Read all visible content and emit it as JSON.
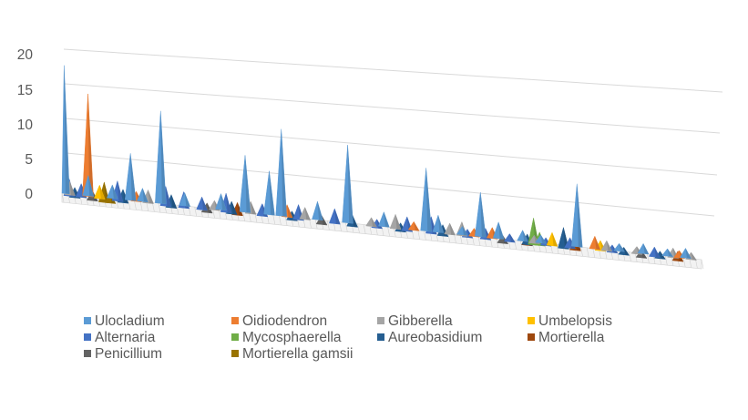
{
  "chart_data": {
    "type": "area",
    "title": "",
    "xlabel": "",
    "ylabel": "",
    "ylim": [
      0,
      20
    ],
    "yticks": [
      "20",
      "15",
      "10",
      "5",
      "0"
    ],
    "grid": true,
    "legend_position": "bottom",
    "series": [
      {
        "name": "Ulocladium",
        "color": "#5B9BD5",
        "peaks": [
          [
            0,
            18.5
          ],
          [
            4,
            3
          ],
          [
            8,
            2
          ],
          [
            11,
            7
          ],
          [
            13,
            2
          ],
          [
            16,
            14
          ],
          [
            20,
            2
          ],
          [
            26,
            2.5
          ],
          [
            30,
            9
          ],
          [
            34,
            7
          ],
          [
            36,
            14
          ],
          [
            42,
            3
          ],
          [
            47,
            13
          ],
          [
            53,
            2.5
          ],
          [
            60,
            11
          ],
          [
            62,
            3
          ],
          [
            66,
            1.5
          ],
          [
            69,
            8
          ],
          [
            72,
            3
          ],
          [
            76,
            2
          ],
          [
            79,
            1.5
          ],
          [
            85,
            12
          ],
          [
            92,
            1.5
          ],
          [
            96,
            2
          ],
          [
            100,
            1.5
          ],
          [
            103,
            2
          ]
        ]
      },
      {
        "name": "Oidiodendron",
        "color": "#ED7D31",
        "peaks": [
          [
            4,
            15
          ],
          [
            12,
            1.5
          ],
          [
            37,
            2
          ],
          [
            58,
            1.5
          ],
          [
            68,
            1.5
          ],
          [
            71,
            2
          ],
          [
            88,
            2.5
          ],
          [
            102,
            1.5
          ]
        ]
      },
      {
        "name": "Gibberella",
        "color": "#A5A5A5",
        "peaks": [
          [
            1,
            2
          ],
          [
            14,
            2
          ],
          [
            25,
            1.5
          ],
          [
            31,
            2
          ],
          [
            40,
            2
          ],
          [
            51,
            1.5
          ],
          [
            55,
            2.5
          ],
          [
            64,
            2
          ],
          [
            66,
            2.5
          ],
          [
            78,
            1.5
          ],
          [
            90,
            2
          ],
          [
            95,
            1.5
          ],
          [
            101,
            2
          ],
          [
            104,
            1.5
          ]
        ]
      },
      {
        "name": "Umbelopsis",
        "color": "#FFC000",
        "peaks": [
          [
            6,
            2
          ],
          [
            81,
            2.5
          ],
          [
            89,
            2
          ]
        ]
      },
      {
        "name": "Alternaria",
        "color": "#4472C4",
        "peaks": [
          [
            1,
            2.5
          ],
          [
            3,
            2
          ],
          [
            9,
            3
          ],
          [
            17,
            3
          ],
          [
            20,
            2.5
          ],
          [
            23,
            2
          ],
          [
            27,
            3
          ],
          [
            33,
            2
          ],
          [
            39,
            2.5
          ],
          [
            45,
            2.5
          ],
          [
            52,
            1.5
          ],
          [
            57,
            2.5
          ],
          [
            61,
            3
          ],
          [
            67,
            1.5
          ],
          [
            70,
            2
          ],
          [
            74,
            1.5
          ],
          [
            80,
            1.5
          ],
          [
            84,
            2
          ],
          [
            91,
            1.5
          ],
          [
            98,
            2
          ]
        ]
      },
      {
        "name": "Mycosphaerella",
        "color": "#70AD47",
        "peaks": [
          [
            78,
            5
          ],
          [
            79,
            2.5
          ]
        ]
      },
      {
        "name": "Aureobasidium",
        "color": "#255E91",
        "peaks": [
          [
            2,
            1.5
          ],
          [
            10,
            2
          ],
          [
            18,
            2
          ],
          [
            28,
            2
          ],
          [
            38,
            1.5
          ],
          [
            48,
            2
          ],
          [
            56,
            1.5
          ],
          [
            63,
            2
          ],
          [
            77,
            2
          ],
          [
            83,
            4
          ],
          [
            93,
            1.5
          ],
          [
            99,
            1.5
          ]
        ]
      },
      {
        "name": "Mortierella",
        "color": "#9E480E",
        "peaks": [
          [
            29,
            2
          ],
          [
            77,
            2
          ],
          [
            85,
            3.5
          ],
          [
            102,
            2
          ]
        ]
      },
      {
        "name": "Penicillium",
        "color": "#636363",
        "peaks": [
          [
            5,
            1.5
          ],
          [
            24,
            1.5
          ],
          [
            43,
            1.5
          ],
          [
            73,
            1.5
          ],
          [
            96,
            1.5
          ]
        ]
      },
      {
        "name": "Mortierella gamsii",
        "color": "#997300",
        "peaks": [
          [
            7,
            3
          ],
          [
            8,
            1.5
          ]
        ]
      }
    ]
  }
}
